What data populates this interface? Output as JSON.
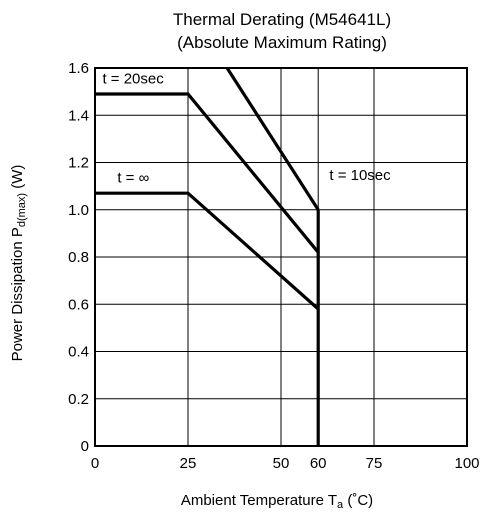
{
  "chart_data": {
    "type": "line",
    "title": "Thermal Derating (M54641L)",
    "subtitle": "(Absolute Maximum Rating)",
    "xlabel": {
      "prefix": "Ambient Temperature T",
      "sub": "a",
      "suffix": " (˚C)"
    },
    "ylabel": {
      "prefix": "Power Dissipation P",
      "sub": "d(max)",
      "suffix": " (W)"
    },
    "xlim": [
      0,
      100
    ],
    "ylim": [
      0,
      1.6
    ],
    "x_ticks": [
      {
        "value": 0,
        "label": "0"
      },
      {
        "value": 25,
        "label": "25"
      },
      {
        "value": 50,
        "label": "50"
      },
      {
        "value": 60,
        "label": "60"
      },
      {
        "value": 75,
        "label": "75"
      },
      {
        "value": 100,
        "label": "100"
      }
    ],
    "y_ticks": [
      {
        "value": 0,
        "label": "0"
      },
      {
        "value": 0.2,
        "label": "0.2"
      },
      {
        "value": 0.4,
        "label": "0.4"
      },
      {
        "value": 0.6,
        "label": "0.6"
      },
      {
        "value": 0.8,
        "label": "0.8"
      },
      {
        "value": 1.0,
        "label": "1.0"
      },
      {
        "value": 1.2,
        "label": "1.2"
      },
      {
        "value": 1.4,
        "label": "1.4"
      },
      {
        "value": 1.6,
        "label": "1.6"
      }
    ],
    "grid": true,
    "series": [
      {
        "name": "t = 10sec",
        "points": [
          [
            35.5,
            1.6
          ],
          [
            60,
            1.0
          ]
        ],
        "label_at": [
          63,
          1.125
        ]
      },
      {
        "name": "t = 20sec",
        "points": [
          [
            0,
            1.49
          ],
          [
            25,
            1.49
          ],
          [
            60,
            0.82
          ]
        ],
        "label_at": [
          2,
          1.535
        ]
      },
      {
        "name": "t = ∞",
        "points": [
          [
            0,
            1.07
          ],
          [
            25,
            1.07
          ],
          [
            60,
            0.58
          ]
        ],
        "label_at": [
          6,
          1.115
        ]
      }
    ],
    "vertical_cutoff": {
      "x": 60,
      "y_top": 1.0,
      "y_bottom": 0
    }
  }
}
